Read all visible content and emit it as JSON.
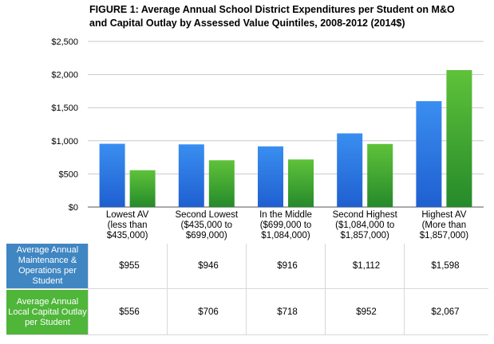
{
  "chart_data": {
    "type": "bar",
    "title": "FIGURE 1: Average Annual School District Expenditures per Student on M&O and Capital Outlay by Assessed Value Quintiles, 2008-2012 (2014$)",
    "categories": [
      [
        "Lowest AV",
        "(less than",
        "$435,000)"
      ],
      [
        "Second Lowest",
        "($435,000 to",
        "$699,000)"
      ],
      [
        "In the Middle",
        "($699,000 to",
        "$1,084,000)"
      ],
      [
        "Second Highest",
        "($1,084,000 to",
        "$1,857,000)"
      ],
      [
        "Highest AV",
        "(More than",
        "$1,857,000)"
      ]
    ],
    "series": [
      {
        "name": "Average Annual Maintenance & Operations per Student",
        "values": [
          955,
          946,
          916,
          1112,
          1598
        ],
        "color": "#1f5fd1",
        "color_light": "#3a8ef0"
      },
      {
        "name": "Average Annual Local Capital Outlay per Student",
        "values": [
          556,
          706,
          718,
          952,
          2067
        ],
        "color": "#258a2a",
        "color_light": "#5fc23a"
      }
    ],
    "ylim": [
      0,
      2500
    ],
    "yticks": [
      0,
      500,
      1000,
      1500,
      2000,
      2500
    ],
    "ytick_labels": [
      "$0",
      "$500",
      "$1,000",
      "$1,500",
      "$2,000",
      "$2,500"
    ],
    "table": {
      "rows": [
        {
          "label": "Average Annual Maintenance & Operations per Student",
          "cells": [
            "$955",
            "$946",
            "$916",
            "$1,112",
            "$1,598"
          ],
          "color": "#3f86c2"
        },
        {
          "label": "Average Annual Local Capital Outlay per Student",
          "cells": [
            "$556",
            "$706",
            "$718",
            "$952",
            "$2,067"
          ],
          "color": "#4fb63a"
        }
      ]
    },
    "grid": true
  }
}
